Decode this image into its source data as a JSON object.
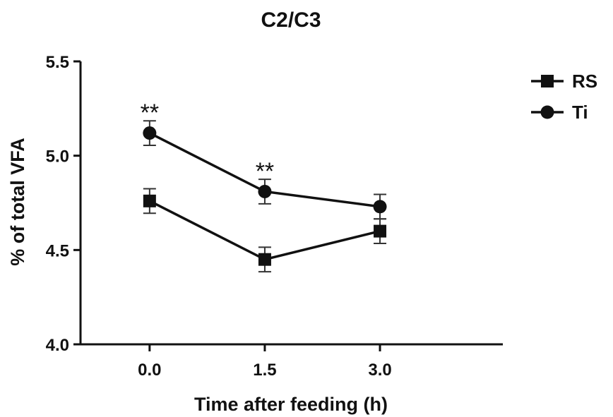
{
  "chart_data": {
    "type": "line",
    "title": "C2/C3",
    "xlabel": "Time after feeding (h)",
    "ylabel": "% of total VFA",
    "x": [
      0.0,
      1.5,
      3.0
    ],
    "x_tick_labels": [
      "0.0",
      "1.5",
      "3.0"
    ],
    "xlim": [
      -0.9,
      4.6
    ],
    "ylim": [
      4.0,
      5.5
    ],
    "y_ticks": [
      4.0,
      4.5,
      5.0,
      5.5
    ],
    "y_tick_labels": [
      "4.0",
      "4.5",
      "5.0",
      "5.5"
    ],
    "grid": false,
    "legend_position": "top-right",
    "series": [
      {
        "name": "RS",
        "marker": "square",
        "color": "#111111",
        "values": [
          4.76,
          4.45,
          4.6
        ],
        "errors": [
          0.065,
          0.065,
          0.065
        ]
      },
      {
        "name": "Ti",
        "marker": "circle",
        "color": "#111111",
        "values": [
          5.12,
          4.81,
          4.73
        ],
        "errors": [
          0.065,
          0.065,
          0.065
        ]
      }
    ],
    "annotations": [
      {
        "text": "**",
        "x": 0.0,
        "y": 5.2
      },
      {
        "text": "**",
        "x": 1.5,
        "y": 4.89
      }
    ]
  }
}
